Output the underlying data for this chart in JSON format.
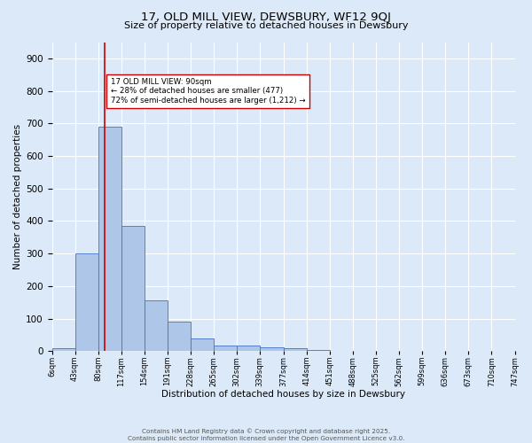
{
  "title": "17, OLD MILL VIEW, DEWSBURY, WF12 9QJ",
  "subtitle": "Size of property relative to detached houses in Dewsbury",
  "xlabel": "Distribution of detached houses by size in Dewsbury",
  "ylabel": "Number of detached properties",
  "bar_edges": [
    6,
    43,
    80,
    117,
    154,
    191,
    228,
    265,
    302,
    339,
    377,
    414,
    451,
    488,
    525,
    562,
    599,
    636,
    673,
    710,
    747
  ],
  "bar_heights": [
    10,
    300,
    690,
    385,
    157,
    90,
    40,
    18,
    17,
    13,
    8,
    4,
    0,
    0,
    0,
    0,
    0,
    0,
    0,
    0
  ],
  "bar_color": "#aec6e8",
  "bar_edge_color": "#4472c4",
  "property_line_x": 90,
  "property_line_color": "#cc0000",
  "annotation_text": "17 OLD MILL VIEW: 90sqm\n← 28% of detached houses are smaller (477)\n72% of semi-detached houses are larger (1,212) →",
  "annotation_box_color": "#ffffff",
  "annotation_box_edge": "#cc0000",
  "ylim": [
    0,
    950
  ],
  "yticks": [
    0,
    100,
    200,
    300,
    400,
    500,
    600,
    700,
    800,
    900
  ],
  "background_color": "#dce9f8",
  "grid_color": "#ffffff",
  "footer_line1": "Contains HM Land Registry data © Crown copyright and database right 2025.",
  "footer_line2": "Contains public sector information licensed under the Open Government Licence v3.0.",
  "tick_labels": [
    "6sqm",
    "43sqm",
    "80sqm",
    "117sqm",
    "154sqm",
    "191sqm",
    "228sqm",
    "265sqm",
    "302sqm",
    "339sqm",
    "377sqm",
    "414sqm",
    "451sqm",
    "488sqm",
    "525sqm",
    "562sqm",
    "599sqm",
    "636sqm",
    "673sqm",
    "710sqm",
    "747sqm"
  ]
}
